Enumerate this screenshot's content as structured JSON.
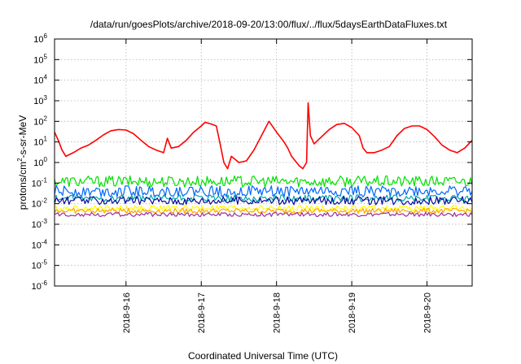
{
  "chart_data": {
    "type": "line",
    "title": "/data/run/goesPlots/archive/2018-09-20/13:00/flux/../flux/5daysEarthDataFluxes.txt",
    "xlabel": "Coordinated Universal Time (UTC)",
    "ylabel_parts": [
      "protons/cm",
      "2",
      "-s-sr-MeV"
    ],
    "y_scale": "log",
    "ylim_exp": [
      -6,
      6
    ],
    "y_ticks": [
      {
        "base": "10",
        "exp": "-6"
      },
      {
        "base": "10",
        "exp": "-5"
      },
      {
        "base": "10",
        "exp": "-4"
      },
      {
        "base": "10",
        "exp": "-3"
      },
      {
        "base": "10",
        "exp": "-2"
      },
      {
        "base": "10",
        "exp": "-1"
      },
      {
        "base": "10",
        "exp": "0"
      },
      {
        "base": "10",
        "exp": "1"
      },
      {
        "base": "10",
        "exp": "2"
      },
      {
        "base": "10",
        "exp": "3"
      },
      {
        "base": "10",
        "exp": "4"
      },
      {
        "base": "10",
        "exp": "5"
      },
      {
        "base": "10",
        "exp": "6"
      }
    ],
    "xlim": [
      15.05,
      20.6
    ],
    "x_ticks": [
      {
        "value": 16,
        "label": "2018-9-16"
      },
      {
        "value": 17,
        "label": "2018-9-17"
      },
      {
        "value": 18,
        "label": "2018-9-18"
      },
      {
        "value": 19,
        "label": "2018-9-19"
      },
      {
        "value": 20,
        "label": "2018-9-20"
      }
    ],
    "grid": true,
    "series": [
      {
        "color": "#ff0000",
        "x": [
          15.05,
          15.1,
          15.15,
          15.2,
          15.3,
          15.4,
          15.5,
          15.6,
          15.7,
          15.8,
          15.9,
          16.0,
          16.1,
          16.2,
          16.3,
          16.4,
          16.5,
          16.55,
          16.6,
          16.7,
          16.8,
          16.9,
          17.0,
          17.05,
          17.1,
          17.15,
          17.2,
          17.25,
          17.3,
          17.35,
          17.4,
          17.5,
          17.6,
          17.7,
          17.8,
          17.9,
          18.0,
          18.1,
          18.15,
          18.2,
          18.3,
          18.35,
          18.4,
          18.42,
          18.45,
          18.5,
          18.6,
          18.7,
          18.8,
          18.9,
          19.0,
          19.1,
          19.15,
          19.2,
          19.3,
          19.4,
          19.5,
          19.6,
          19.7,
          19.8,
          19.9,
          20.0,
          20.1,
          20.2,
          20.3,
          20.4,
          20.5,
          20.6
        ],
        "y": [
          30,
          12,
          4,
          2,
          3,
          5,
          7,
          12,
          22,
          35,
          40,
          38,
          25,
          12,
          6,
          4,
          3,
          15,
          5,
          6,
          12,
          30,
          60,
          90,
          80,
          70,
          60,
          8,
          1,
          0.5,
          2,
          1,
          1.2,
          4,
          20,
          100,
          30,
          10,
          5,
          2,
          0.7,
          0.5,
          1,
          800,
          20,
          8,
          18,
          40,
          70,
          80,
          50,
          20,
          5,
          3,
          3,
          4,
          6,
          20,
          45,
          60,
          60,
          40,
          18,
          7,
          4,
          3,
          5,
          12
        ]
      },
      {
        "color": "#00e000",
        "x": [
          15.05,
          20.6
        ],
        "y": [
          0.12,
          0.12
        ]
      },
      {
        "color": "#0066ff",
        "x": [
          15.05,
          20.6
        ],
        "y": [
          0.04,
          0.04
        ]
      },
      {
        "color": "#00a6a6",
        "x": [
          15.05,
          20.6
        ],
        "y": [
          0.018,
          0.018
        ]
      },
      {
        "color": "#0a0a9c",
        "x": [
          15.05,
          20.6
        ],
        "y": [
          0.014,
          0.014
        ]
      },
      {
        "color": "#ffff00",
        "x": [
          15.05,
          20.6
        ],
        "y": [
          0.006,
          0.006
        ]
      },
      {
        "color": "#ffa500",
        "x": [
          15.05,
          20.6
        ],
        "y": [
          0.0045,
          0.0045
        ]
      },
      {
        "color": "#9a2f9a",
        "x": [
          15.05,
          20.6
        ],
        "y": [
          0.003,
          0.003
        ]
      }
    ]
  }
}
